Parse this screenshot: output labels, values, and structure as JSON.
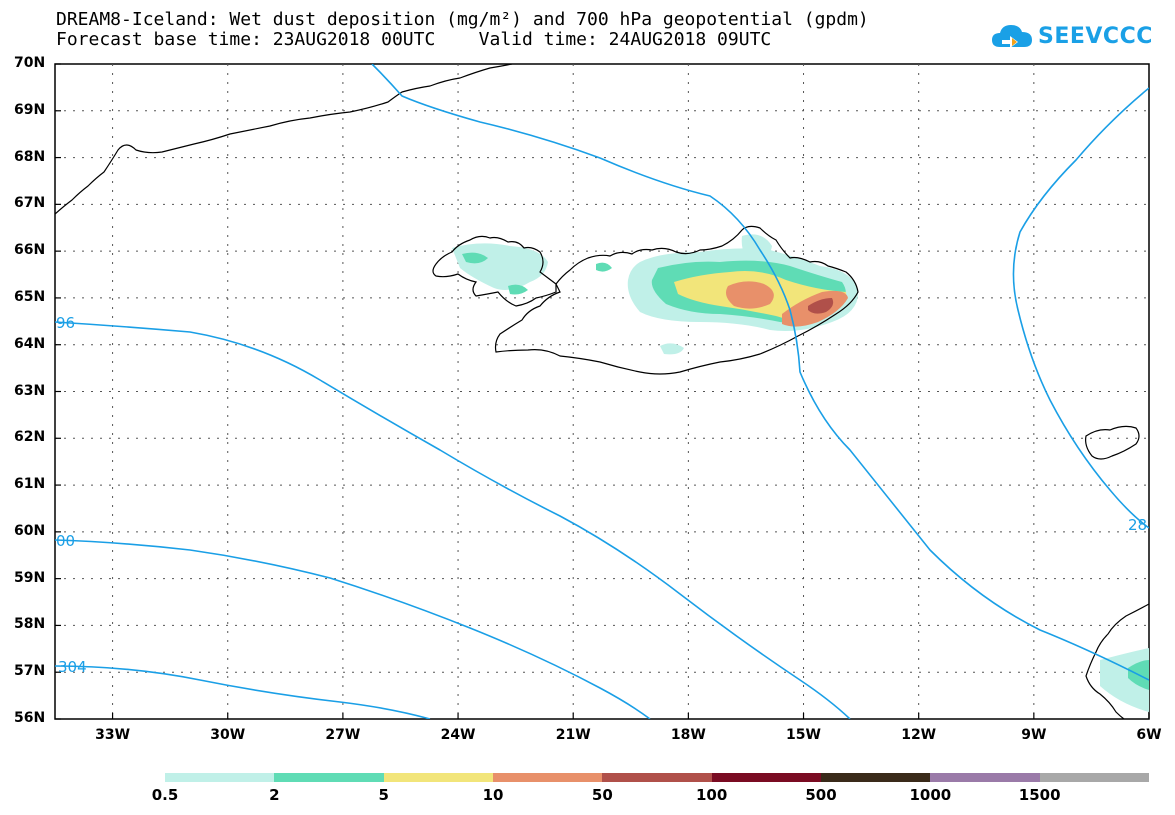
{
  "header": {
    "title_line1": "DREAM8-Iceland: Wet dust deposition (mg/m²) and 700 hPa geopotential (gpdm)",
    "title_line2": "Forecast base time: 23AUG2018 00UTC    Valid time: 24AUG2018 09UTC",
    "logo_text": "SEEVCCC",
    "logo_icon": "cloud-icon"
  },
  "map": {
    "lat_labels": [
      "70N",
      "69N",
      "68N",
      "67N",
      "66N",
      "65N",
      "64N",
      "63N",
      "62N",
      "61N",
      "60N",
      "59N",
      "58N",
      "57N",
      "56N"
    ],
    "lon_labels": [
      "33W",
      "30W",
      "27W",
      "24W",
      "21W",
      "18W",
      "15W",
      "12W",
      "9W",
      "6W"
    ],
    "lat_range": [
      56,
      70
    ],
    "lon_range": [
      -34.5,
      -6
    ],
    "contour_labels": [
      "96",
      "00",
      "304",
      "28"
    ],
    "contour_color": "#1a9fe6",
    "grid": "dotted"
  },
  "legend": {
    "labels": [
      "0.5",
      "2",
      "5",
      "10",
      "50",
      "100",
      "500",
      "1000",
      "1500"
    ],
    "colors": [
      "#c0f0e8",
      "#5fdcb5",
      "#f2e57a",
      "#e8906a",
      "#b0504a",
      "#7a0b22",
      "#3a2a1a",
      "#9a7aa8",
      "#a8a8a8"
    ]
  }
}
